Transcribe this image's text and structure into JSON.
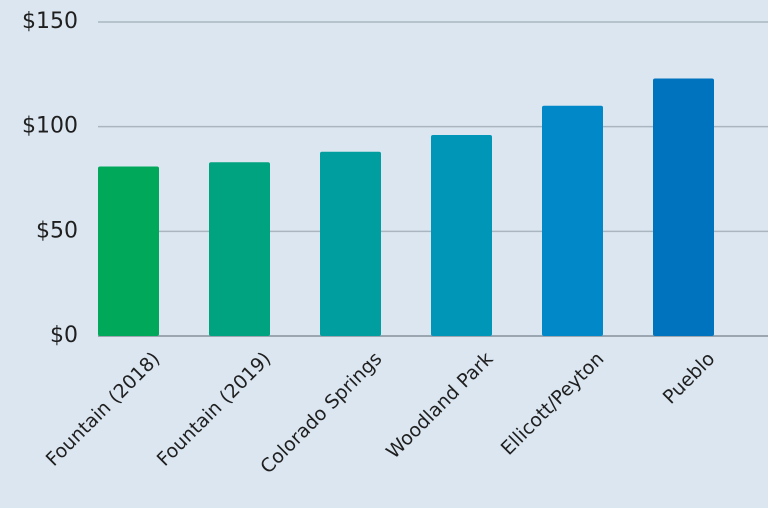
{
  "chart_data": {
    "type": "bar",
    "categories": [
      "Fountain (2018)",
      "Fountain (2019)",
      "Colorado Springs",
      "Woodland Park",
      "Ellicott/Peyton",
      "Pueblo"
    ],
    "values": [
      81,
      83,
      88,
      96,
      110,
      123
    ],
    "ylim": [
      0,
      150
    ],
    "yticks": [
      0,
      50,
      100,
      150
    ],
    "ytick_labels": [
      "$0",
      "$50",
      "$100",
      "$150"
    ],
    "title": "",
    "xlabel": "",
    "ylabel": "",
    "grid": true,
    "bar_colors": [
      "#00a85a",
      "#00a37f",
      "#009e9e",
      "#0096b8",
      "#0088c8",
      "#0073bf"
    ],
    "background": "#dbe6f1"
  }
}
